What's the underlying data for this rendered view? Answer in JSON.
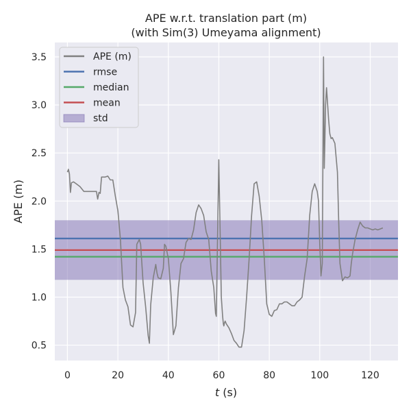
{
  "chart_data": {
    "type": "line",
    "title": "APE w.r.t. translation part (m)",
    "subtitle": "(with Sim(3) Umeyama alignment)",
    "xlabel_var": "t",
    "xlabel_unit": " (s)",
    "ylabel": "APE (m)",
    "xlim": [
      -5,
      131
    ],
    "ylim": [
      0.34,
      3.65
    ],
    "x_ticks": [
      0,
      20,
      40,
      60,
      80,
      100,
      120
    ],
    "y_ticks": [
      0.5,
      1.0,
      1.5,
      2.0,
      2.5,
      3.0,
      3.5
    ],
    "x_tick_labels": [
      "0",
      "20",
      "40",
      "60",
      "80",
      "100",
      "120"
    ],
    "y_tick_labels": [
      "0.5",
      "1.0",
      "1.5",
      "2.0",
      "2.5",
      "3.0",
      "3.5"
    ],
    "legend_location": "upper-left",
    "legend": [
      {
        "label": "APE (m)",
        "kind": "line",
        "color": "#808080"
      },
      {
        "label": "rmse",
        "kind": "line",
        "color": "#4c72b0"
      },
      {
        "label": "median",
        "kind": "line",
        "color": "#55a868"
      },
      {
        "label": "mean",
        "kind": "line",
        "color": "#c44e52"
      },
      {
        "label": "std",
        "kind": "patch",
        "color": "#8172b3"
      }
    ],
    "stats": {
      "rmse": 1.61,
      "median": 1.42,
      "mean": 1.49,
      "std_low": 1.18,
      "std_high": 1.8
    },
    "series": [
      {
        "name": "APE (m)",
        "x": [
          0,
          0.4,
          0.8,
          1.2,
          1.6,
          2.4,
          3.5,
          5,
          6.5,
          9,
          11.5,
          12,
          12.5,
          13,
          13.5,
          15,
          16,
          17,
          18,
          19,
          20,
          21,
          22,
          23,
          24,
          25,
          26,
          27,
          27.5,
          28.5,
          29,
          30,
          31,
          32,
          32.5,
          33,
          34,
          35,
          35.5,
          36,
          37,
          38,
          38.5,
          39,
          40,
          41,
          42,
          43,
          44,
          45,
          46,
          47,
          48,
          49,
          50,
          51,
          52,
          53,
          54,
          55,
          56,
          57,
          58,
          58.7,
          59,
          60,
          61,
          61.5,
          61.8,
          62,
          62.2,
          62.5,
          63,
          64,
          65,
          66,
          67,
          68,
          69,
          70,
          71,
          72,
          73,
          74,
          75,
          76,
          77,
          78,
          79,
          80,
          81,
          82,
          83,
          84,
          85,
          86,
          87,
          88,
          89,
          90,
          91,
          92,
          93,
          94,
          95,
          96,
          97,
          98,
          99,
          99.5,
          100,
          100.5,
          101,
          101.5,
          101.8,
          102,
          102.3,
          102.7,
          103.5,
          104,
          104.5,
          105,
          106,
          107,
          107.5,
          108,
          109,
          110,
          111,
          112,
          112.5,
          113,
          114,
          115,
          116,
          117,
          118,
          119,
          120,
          121,
          122,
          123,
          124,
          125
        ],
        "values": [
          2.3,
          2.33,
          2.28,
          2.09,
          2.19,
          2.2,
          2.18,
          2.15,
          2.1,
          2.1,
          2.1,
          2.02,
          2.09,
          2.08,
          2.25,
          2.25,
          2.26,
          2.22,
          2.22,
          2.05,
          1.9,
          1.6,
          1.1,
          0.97,
          0.9,
          0.71,
          0.69,
          0.84,
          1.55,
          1.6,
          1.55,
          1.15,
          0.9,
          0.6,
          0.52,
          0.92,
          1.2,
          1.34,
          1.25,
          1.2,
          1.19,
          1.3,
          1.55,
          1.53,
          1.4,
          1.05,
          0.61,
          0.7,
          1.1,
          1.35,
          1.4,
          1.57,
          1.61,
          1.6,
          1.7,
          1.88,
          1.96,
          1.92,
          1.85,
          1.68,
          1.6,
          1.27,
          1.1,
          0.83,
          0.8,
          2.43,
          1.0,
          0.8,
          0.72,
          0.7,
          0.73,
          0.75,
          0.72,
          0.68,
          0.62,
          0.55,
          0.52,
          0.48,
          0.48,
          0.65,
          1.0,
          1.4,
          1.85,
          2.18,
          2.2,
          2.05,
          1.8,
          1.4,
          0.93,
          0.82,
          0.8,
          0.86,
          0.87,
          0.93,
          0.93,
          0.95,
          0.95,
          0.93,
          0.91,
          0.91,
          0.95,
          0.97,
          1.0,
          1.22,
          1.4,
          1.85,
          2.1,
          2.18,
          2.1,
          2.0,
          1.55,
          1.22,
          1.35,
          3.5,
          2.34,
          2.6,
          3.0,
          3.18,
          2.85,
          2.7,
          2.65,
          2.66,
          2.6,
          2.3,
          1.8,
          1.35,
          1.17,
          1.21,
          1.2,
          1.22,
          1.35,
          1.45,
          1.6,
          1.7,
          1.78,
          1.74,
          1.72,
          1.72,
          1.71,
          1.7,
          1.71,
          1.7,
          1.71,
          1.72
        ]
      }
    ]
  }
}
